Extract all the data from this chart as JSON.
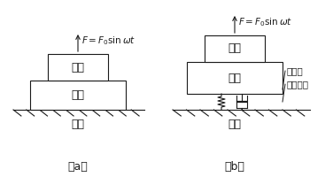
{
  "bg_color": "#ffffff",
  "line_color": "#1a1a1a",
  "label_a": "（a）",
  "label_b": "（b）",
  "ground_label": "地面",
  "force_label": "$F=F_0\\sin\\omega t$",
  "shebei_label": "设备",
  "jizuo_label": "基座",
  "nian_label": "粘性阻",
  "tan_label": "弹性元件",
  "fig_w": 3.76,
  "fig_h": 2.0,
  "dpi": 100
}
